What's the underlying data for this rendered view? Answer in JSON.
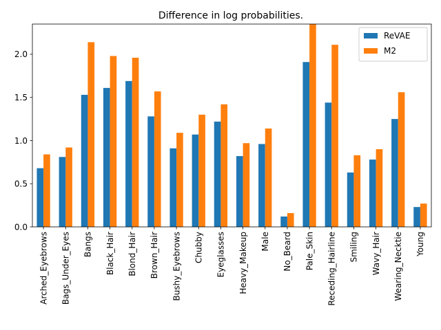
{
  "chart_data": {
    "type": "bar",
    "title": "Difference in log probabilities.",
    "xlabel": "",
    "ylabel": "",
    "ylim": [
      0,
      2.35
    ],
    "yticks": [
      0.0,
      0.5,
      1.0,
      1.5,
      2.0
    ],
    "ytick_labels": [
      "0.0",
      "0.5",
      "1.0",
      "1.5",
      "2.0"
    ],
    "grid": false,
    "legend_position": "top-right",
    "categories": [
      "Arched_Eyebrows",
      "Bags_Under_Eyes",
      "Bangs",
      "Black_Hair",
      "Blond_Hair",
      "Brown_Hair",
      "Bushy_Eyebrows",
      "Chubby",
      "Eyeglasses",
      "Heavy_Makeup",
      "Male",
      "No_Beard",
      "Pale_Skin",
      "Receding_Hairline",
      "Smiling",
      "Wavy_Hair",
      "Wearing_Necktie",
      "Young"
    ],
    "series": [
      {
        "name": "ReVAE",
        "color": "#1f77b4",
        "values": [
          0.68,
          0.81,
          1.53,
          1.61,
          1.69,
          1.28,
          0.91,
          1.07,
          1.22,
          0.82,
          0.96,
          0.12,
          1.91,
          1.44,
          0.63,
          0.78,
          1.25,
          0.23
        ]
      },
      {
        "name": "M2",
        "color": "#ff7f0e",
        "values": [
          0.84,
          0.92,
          2.14,
          1.98,
          1.96,
          1.57,
          1.09,
          1.3,
          1.42,
          0.97,
          1.14,
          0.16,
          2.36,
          2.11,
          0.83,
          0.9,
          1.56,
          0.27
        ]
      }
    ]
  }
}
